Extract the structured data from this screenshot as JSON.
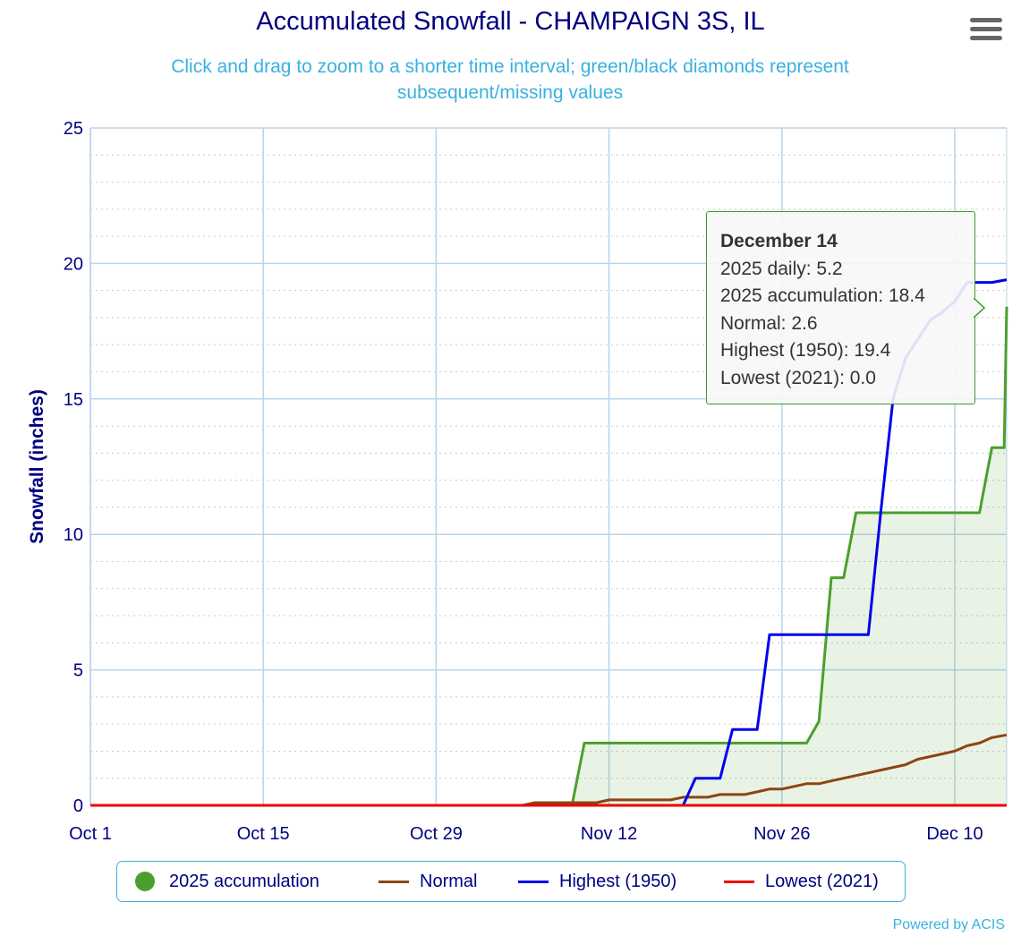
{
  "header": {
    "title": "Accumulated Snowfall - CHAMPAIGN 3S, IL",
    "subtitle_line1": "Click and drag to zoom to a shorter time interval; green/black diamonds represent",
    "subtitle_line2": "subsequent/missing values"
  },
  "menu": {
    "icon": "hamburger-menu-icon"
  },
  "tooltip": {
    "date": "December 14",
    "lines": [
      "2025 daily: 5.2",
      "2025 accumulation: 18.4",
      "Normal: 2.6",
      "Highest (1950): 19.4",
      "Lowest (2021): 0.0"
    ]
  },
  "legend": {
    "items": [
      {
        "label": "2025 accumulation",
        "color": "#4aa02c",
        "symbol": "circle"
      },
      {
        "label": "Normal",
        "color": "#8b4513",
        "symbol": "line"
      },
      {
        "label": "Highest (1950)",
        "color": "#0000ee",
        "symbol": "line"
      },
      {
        "label": "Lowest (2021)",
        "color": "#ee0000",
        "symbol": "line"
      }
    ]
  },
  "credits": "Powered by ACIS",
  "chart_data": {
    "type": "line",
    "title": "Accumulated Snowfall - CHAMPAIGN 3S, IL",
    "ylabel": "Snowfall (inches)",
    "xlabel": "",
    "ylim": [
      0,
      25
    ],
    "xlim": [
      0,
      74
    ],
    "yticks": [
      0,
      5,
      10,
      15,
      20,
      25
    ],
    "xticks": [
      {
        "day": 0,
        "label": "Oct 1"
      },
      {
        "day": 14,
        "label": "Oct 15"
      },
      {
        "day": 28,
        "label": "Oct 29"
      },
      {
        "day": 42,
        "label": "Nov 12"
      },
      {
        "day": 56,
        "label": "Nov 26"
      },
      {
        "day": 70,
        "label": "Dec 10"
      }
    ],
    "x_unit": "days since Oct 1",
    "grid": true,
    "legend_position": "bottom",
    "series": [
      {
        "name": "2025 accumulation",
        "color": "#4aa02c",
        "fill": "rgba(74,160,44,0.12)",
        "points": [
          [
            0,
            0
          ],
          [
            39,
            0
          ],
          [
            40,
            2.3
          ],
          [
            58,
            2.3
          ],
          [
            59,
            3.1
          ],
          [
            60,
            8.4
          ],
          [
            61,
            8.4
          ],
          [
            62,
            10.8
          ],
          [
            72,
            10.8
          ],
          [
            73,
            13.2
          ],
          [
            74,
            13.2
          ],
          [
            75,
            18.4
          ]
        ]
      },
      {
        "name": "Normal",
        "color": "#8b4513",
        "points": [
          [
            0,
            0
          ],
          [
            35,
            0
          ],
          [
            36,
            0.1
          ],
          [
            41,
            0.1
          ],
          [
            42,
            0.2
          ],
          [
            47,
            0.2
          ],
          [
            48,
            0.3
          ],
          [
            50,
            0.3
          ],
          [
            51,
            0.4
          ],
          [
            53,
            0.4
          ],
          [
            54,
            0.5
          ],
          [
            55,
            0.6
          ],
          [
            56,
            0.6
          ],
          [
            57,
            0.7
          ],
          [
            58,
            0.8
          ],
          [
            59,
            0.8
          ],
          [
            60,
            0.9
          ],
          [
            61,
            1.0
          ],
          [
            62,
            1.1
          ],
          [
            63,
            1.2
          ],
          [
            64,
            1.3
          ],
          [
            65,
            1.4
          ],
          [
            66,
            1.5
          ],
          [
            67,
            1.7
          ],
          [
            68,
            1.8
          ],
          [
            69,
            1.9
          ],
          [
            70,
            2.0
          ],
          [
            71,
            2.2
          ],
          [
            72,
            2.3
          ],
          [
            73,
            2.5
          ],
          [
            75,
            2.6
          ]
        ]
      },
      {
        "name": "Highest (1950)",
        "color": "#0000ee",
        "points": [
          [
            0,
            0
          ],
          [
            48,
            0
          ],
          [
            49,
            1.0
          ],
          [
            51,
            1.0
          ],
          [
            52,
            2.8
          ],
          [
            54,
            2.8
          ],
          [
            55,
            6.3
          ],
          [
            63,
            6.3
          ],
          [
            64,
            10.8
          ],
          [
            65,
            15.0
          ],
          [
            66,
            16.5
          ],
          [
            67,
            17.2
          ],
          [
            68,
            17.9
          ],
          [
            69,
            18.2
          ],
          [
            70,
            18.6
          ],
          [
            71,
            19.3
          ],
          [
            72,
            19.3
          ],
          [
            73,
            19.3
          ],
          [
            75,
            19.4
          ]
        ]
      },
      {
        "name": "Lowest (2021)",
        "color": "#ee0000",
        "points": [
          [
            0,
            0
          ],
          [
            75,
            0
          ]
        ]
      }
    ]
  }
}
